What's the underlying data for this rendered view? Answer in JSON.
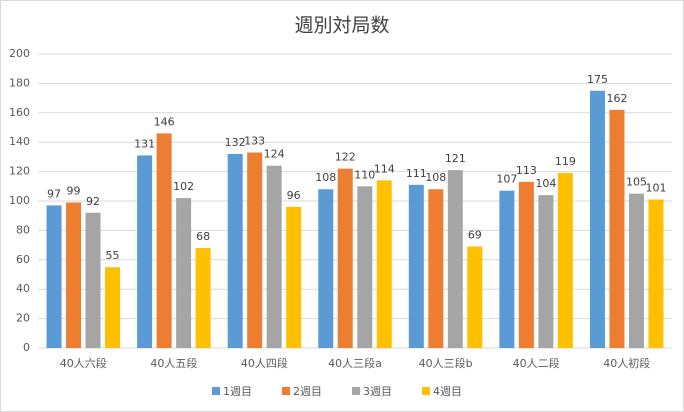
{
  "chart_data": {
    "type": "bar",
    "title": "週別対局数",
    "categories": [
      "40人六段",
      "40人五段",
      "40人四段",
      "40人三段a",
      "40人三段b",
      "40人二段",
      "40人初段"
    ],
    "series": [
      {
        "name": "1週目",
        "color": "#5b9bd5",
        "values": [
          97,
          131,
          132,
          108,
          111,
          107,
          175
        ]
      },
      {
        "name": "2週目",
        "color": "#ed7d31",
        "values": [
          99,
          146,
          133,
          122,
          108,
          113,
          162
        ]
      },
      {
        "name": "3週目",
        "color": "#a5a5a5",
        "values": [
          92,
          102,
          124,
          110,
          121,
          104,
          105
        ]
      },
      {
        "name": "4週目",
        "color": "#ffc000",
        "values": [
          55,
          68,
          96,
          114,
          69,
          119,
          101
        ]
      }
    ],
    "ylim": [
      0,
      200
    ],
    "yticks": [
      0,
      20,
      40,
      60,
      80,
      100,
      120,
      140,
      160,
      180,
      200
    ],
    "grid": true,
    "legend": "bottom"
  }
}
